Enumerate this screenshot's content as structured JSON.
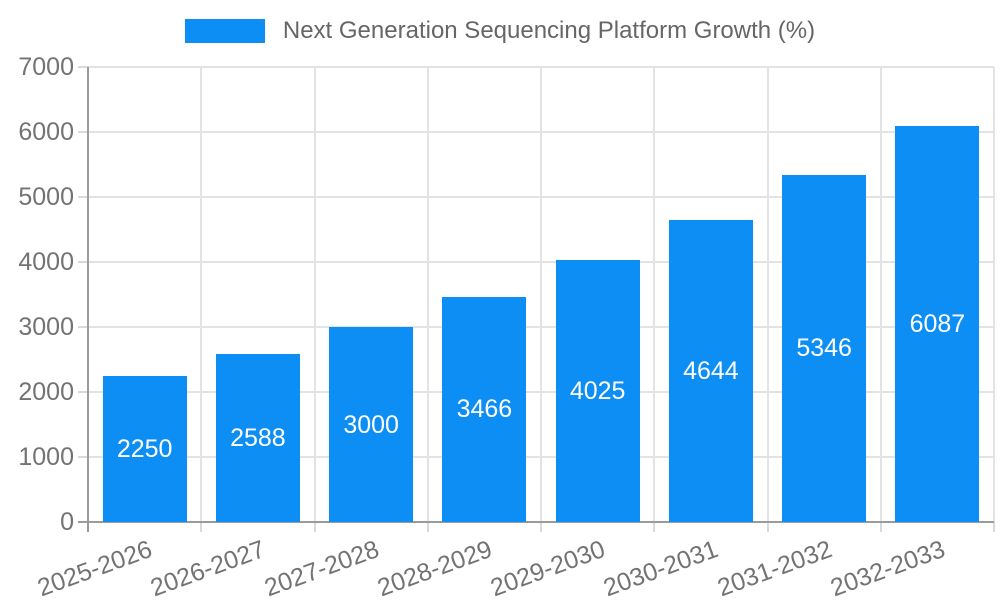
{
  "chart_data": {
    "type": "bar",
    "title": "Next Generation Sequencing Platform Growth (%)",
    "categories": [
      "2025-2026",
      "2026-2027",
      "2027-2028",
      "2028-2029",
      "2029-2030",
      "2030-2031",
      "2031-2032",
      "2032-2033"
    ],
    "values": [
      2250,
      2588,
      3000,
      3466,
      4025,
      4644,
      5346,
      6087
    ],
    "bar_labels": [
      "2250",
      "2588",
      "3000",
      "3466",
      "4025",
      "4644",
      "5346",
      "6087"
    ],
    "y_ticks": [
      "0",
      "1000",
      "2000",
      "3000",
      "4000",
      "5000",
      "6000",
      "7000"
    ],
    "ylim": [
      0,
      7000
    ],
    "xlabel": "",
    "ylabel": "",
    "grid": true,
    "legend_position": "top",
    "colors": {
      "bar": "#0d8ef4",
      "bar_value_text": "#ffffff",
      "grid": "#e3e3e3",
      "axis": "#9b9b9b",
      "tick_mark": "#d9d9d9",
      "tick_text": "#737373",
      "legend_text": "#666666",
      "background": "#ffffff"
    }
  }
}
